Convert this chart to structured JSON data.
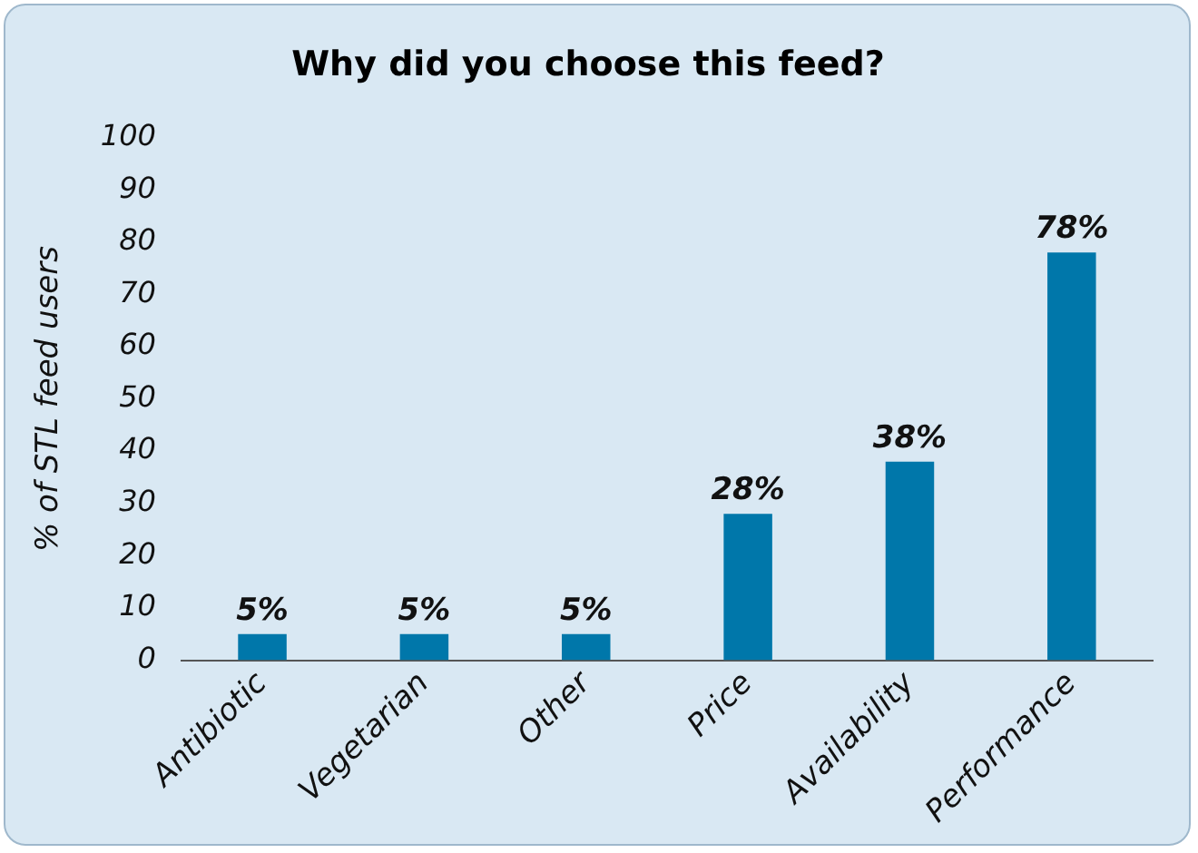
{
  "chart_data": {
    "type": "bar",
    "title": "Why did you choose this feed?",
    "ylabel": "% of STL feed users",
    "categories": [
      "Antibiotic",
      "Vegetarian",
      "Other",
      "Price",
      "Availability",
      "Performance"
    ],
    "values": [
      5,
      5,
      5,
      28,
      38,
      78
    ],
    "value_labels": [
      "5%",
      "5%",
      "5%",
      "28%",
      "38%",
      "78%"
    ],
    "color": "#0077aa",
    "ylim": [
      0,
      100
    ],
    "yticks": [
      0,
      10,
      20,
      30,
      40,
      50,
      60,
      70,
      80,
      90,
      100
    ],
    "grid": false,
    "legend": false
  }
}
